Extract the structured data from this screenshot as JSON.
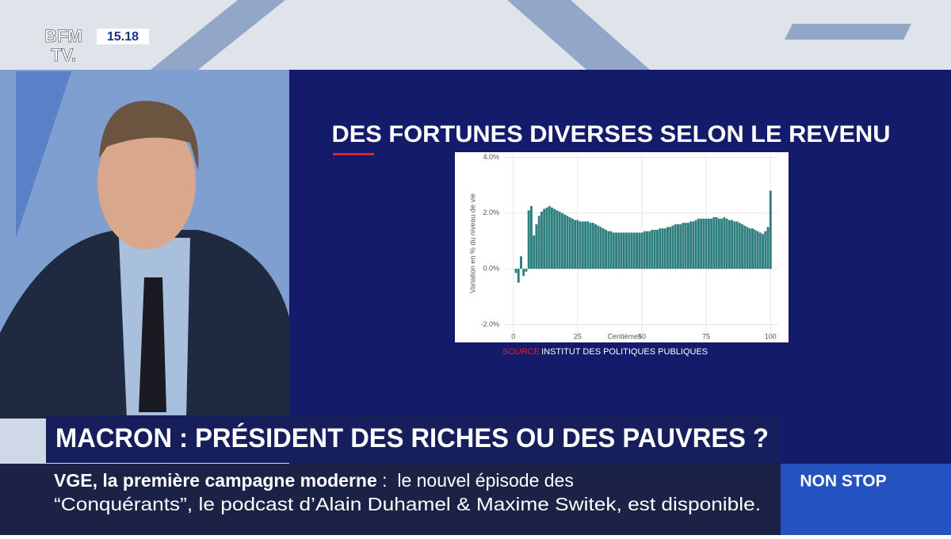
{
  "header": {
    "logo_top": "BFM",
    "logo_bottom": "TV.",
    "time": "15.18"
  },
  "chart_data": {
    "type": "bar",
    "title": "DES FORTUNES DIVERSES SELON LE REVENU",
    "x_label": "Centièmes",
    "y_label": "Variation en % du niveau de vie",
    "source_label": "SOURCE",
    "source": "INSTITUT DES POLITIQUES PUBLIQUES",
    "color": "#2f7f7f",
    "x": [
      1,
      2,
      3,
      4,
      5,
      6,
      7,
      8,
      9,
      10,
      11,
      12,
      13,
      14,
      15,
      16,
      17,
      18,
      19,
      20,
      21,
      22,
      23,
      24,
      25,
      26,
      27,
      28,
      29,
      30,
      31,
      32,
      33,
      34,
      35,
      36,
      37,
      38,
      39,
      40,
      41,
      42,
      43,
      44,
      45,
      46,
      47,
      48,
      49,
      50,
      51,
      52,
      53,
      54,
      55,
      56,
      57,
      58,
      59,
      60,
      61,
      62,
      63,
      64,
      65,
      66,
      67,
      68,
      69,
      70,
      71,
      72,
      73,
      74,
      75,
      76,
      77,
      78,
      79,
      80,
      81,
      82,
      83,
      84,
      85,
      86,
      87,
      88,
      89,
      90,
      91,
      92,
      93,
      94,
      95,
      96,
      97,
      98,
      99,
      100
    ],
    "values": [
      -0.15,
      -0.5,
      0.45,
      -0.25,
      -0.1,
      2.1,
      2.25,
      1.2,
      1.6,
      1.9,
      2.05,
      2.15,
      2.2,
      2.25,
      2.2,
      2.15,
      2.1,
      2.05,
      2.0,
      1.95,
      1.9,
      1.85,
      1.8,
      1.75,
      1.75,
      1.7,
      1.7,
      1.7,
      1.7,
      1.65,
      1.65,
      1.6,
      1.55,
      1.5,
      1.45,
      1.4,
      1.35,
      1.35,
      1.3,
      1.3,
      1.3,
      1.3,
      1.3,
      1.3,
      1.3,
      1.3,
      1.3,
      1.3,
      1.3,
      1.3,
      1.35,
      1.35,
      1.35,
      1.4,
      1.4,
      1.4,
      1.45,
      1.45,
      1.45,
      1.5,
      1.5,
      1.55,
      1.6,
      1.6,
      1.6,
      1.65,
      1.65,
      1.65,
      1.7,
      1.7,
      1.75,
      1.8,
      1.8,
      1.8,
      1.8,
      1.8,
      1.8,
      1.85,
      1.85,
      1.8,
      1.8,
      1.85,
      1.8,
      1.75,
      1.75,
      1.7,
      1.7,
      1.65,
      1.6,
      1.55,
      1.5,
      1.45,
      1.45,
      1.4,
      1.35,
      1.3,
      1.25,
      1.35,
      1.5,
      2.8
    ],
    "xlim": [
      -3,
      103
    ],
    "xticks": [
      0,
      25,
      50,
      75,
      100
    ],
    "ylim": [
      -2.3,
      4.1
    ],
    "yticks": [
      {
        "value": -2,
        "label": "-2.0%"
      },
      {
        "value": 0,
        "label": "0.0%"
      },
      {
        "value": 2,
        "label": "2.0%"
      },
      {
        "value": 4,
        "label": "4.0%"
      }
    ],
    "grid": true
  },
  "banner": {
    "headline": "MACRON : PRÉSIDENT DES RICHES OU DES PAUVRES ?"
  },
  "ticker": {
    "lead": "VGE, la première campagne moderne",
    "line1": " :  le nouvel épisode des",
    "line2": "“Conquérants”, le podcast d’Alain Duhamel & Maxime Switek, est disponible."
  },
  "badge": "NON STOP"
}
